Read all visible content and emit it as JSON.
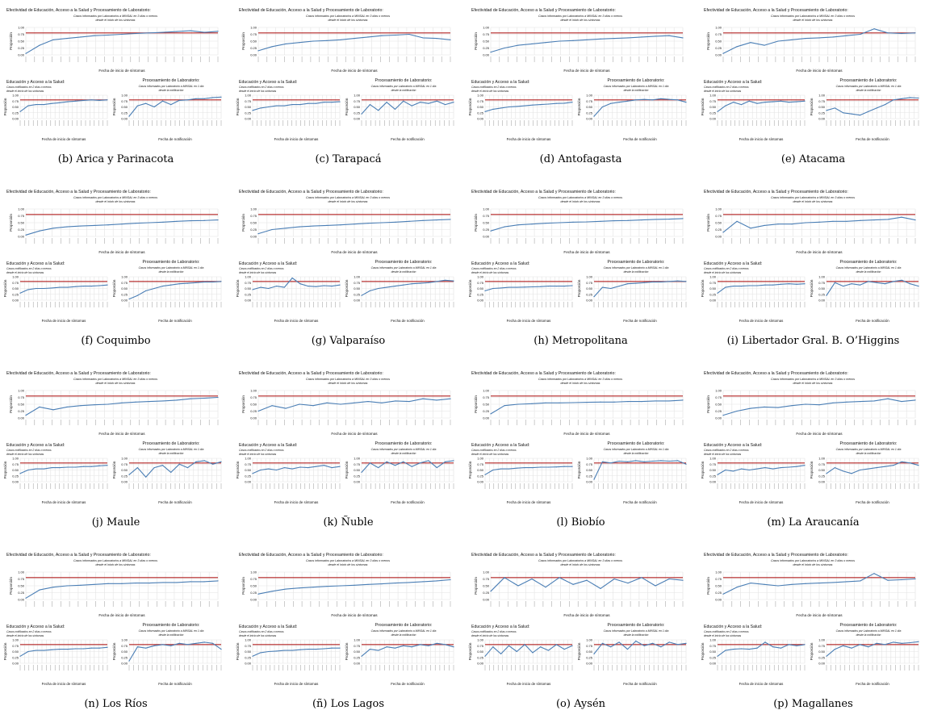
{
  "common": {
    "main_title": "Efectividad de Educación, Acceso a la Salud y Procesamiento de Laboratorio:",
    "main_subtitle_1": "Casos informados por Laboratorios a MINSAL en 3 días o menos",
    "main_subtitle_2": "desde el inicio de los síntomas",
    "main_xlabel": "Fecha de inicio de síntomas",
    "ylabel": "Proporción",
    "left_title": "Educación y Acceso a la Salud:",
    "left_subtitle_1": "Casos notificados en 2 días o menos",
    "left_subtitle_2": "desde el inicio de los síntomas",
    "left_xlabel": "Fecha de inicio de síntomas",
    "right_title": "Procesamiento de Laboratorio:",
    "right_subtitle_1": "Casos informados por Laboratorio a MINSAL en 1 día",
    "right_subtitle_2": "desde la notificación",
    "right_xlabel": "Fecha de notificación",
    "yticks": [
      "0.00",
      "0.25",
      "0.50",
      "0.75",
      "1.00"
    ],
    "threshold": 0.8,
    "colors": {
      "series": "#4a7eb5",
      "threshold": "#b22222",
      "grid": "#e3e3e3"
    }
  },
  "chart_data": [
    {
      "type": "line",
      "caption": "(b) Arica y Parinacota",
      "title": "Efectividad de Educación, Acceso a la Salud y Procesamiento de Laboratorio:",
      "ylabel": "Proporción",
      "ylim": [
        0,
        1
      ],
      "threshold": 0.8,
      "main": [
        0.05,
        0.35,
        0.55,
        0.6,
        0.65,
        0.7,
        0.72,
        0.75,
        0.78,
        0.8,
        0.82,
        0.85,
        0.88,
        0.82,
        0.86
      ],
      "sub_left": [
        0.3,
        0.55,
        0.6,
        0.6,
        0.65,
        0.68,
        0.72,
        0.75,
        0.78,
        0.8,
        0.78,
        0.8
      ],
      "sub_right": [
        0.1,
        0.55,
        0.65,
        0.5,
        0.75,
        0.6,
        0.78,
        0.8,
        0.85,
        0.85,
        0.9,
        0.92
      ]
    },
    {
      "type": "line",
      "caption": "(c) Tarapacá",
      "title": "Efectividad de Educación, Acceso a la Salud y Procesamiento de Laboratorio:",
      "ylabel": "Proporción",
      "ylim": [
        0,
        1
      ],
      "threshold": 0.8,
      "main": [
        0.15,
        0.3,
        0.4,
        0.45,
        0.5,
        0.52,
        0.55,
        0.6,
        0.65,
        0.7,
        0.72,
        0.75,
        0.62,
        0.6,
        0.55
      ],
      "sub_left": [
        0.35,
        0.45,
        0.5,
        0.55,
        0.55,
        0.6,
        0.6,
        0.65,
        0.65,
        0.7,
        0.7,
        0.72
      ],
      "sub_right": [
        0.2,
        0.6,
        0.35,
        0.7,
        0.4,
        0.75,
        0.55,
        0.7,
        0.65,
        0.75,
        0.6,
        0.7
      ]
    },
    {
      "type": "line",
      "caption": "(d) Antofagasta",
      "title": "Efectividad de Educación, Acceso a la Salud y Procesamiento de Laboratorio:",
      "ylabel": "Proporción",
      "ylim": [
        0,
        1
      ],
      "threshold": 0.8,
      "main": [
        0.1,
        0.25,
        0.35,
        0.4,
        0.45,
        0.5,
        0.52,
        0.55,
        0.58,
        0.6,
        0.62,
        0.65,
        0.68,
        0.7,
        0.62
      ],
      "sub_left": [
        0.3,
        0.4,
        0.45,
        0.5,
        0.52,
        0.55,
        0.58,
        0.6,
        0.62,
        0.65,
        0.66,
        0.7
      ],
      "sub_right": [
        0.1,
        0.5,
        0.65,
        0.7,
        0.75,
        0.8,
        0.82,
        0.8,
        0.85,
        0.82,
        0.8,
        0.7
      ]
    },
    {
      "type": "line",
      "caption": "(e) Atacama",
      "title": "Efectividad de Educación, Acceso a la Salud y Procesamiento de Laboratorio:",
      "ylabel": "Proporción",
      "ylim": [
        0,
        1
      ],
      "threshold": 0.8,
      "main": [
        0.05,
        0.3,
        0.45,
        0.35,
        0.5,
        0.55,
        0.6,
        0.62,
        0.65,
        0.7,
        0.75,
        0.95,
        0.8,
        0.78,
        0.8
      ],
      "sub_left": [
        0.3,
        0.55,
        0.7,
        0.6,
        0.75,
        0.65,
        0.7,
        0.72,
        0.75,
        0.7,
        0.72,
        0.75
      ],
      "sub_right": [
        0.35,
        0.45,
        0.25,
        0.2,
        0.15,
        0.3,
        0.45,
        0.6,
        0.8,
        0.85,
        0.9,
        0.88
      ]
    },
    {
      "type": "line",
      "caption": "(f) Coquimbo",
      "title": "Efectividad de Educación, Acceso a la Salud y Procesamiento de Laboratorio:",
      "ylabel": "Proporción",
      "ylim": [
        0,
        1
      ],
      "threshold": 0.8,
      "main": [
        0.05,
        0.2,
        0.3,
        0.35,
        0.38,
        0.4,
        0.42,
        0.45,
        0.48,
        0.5,
        0.52,
        0.55,
        0.57,
        0.58,
        0.6
      ],
      "sub_left": [
        0.3,
        0.45,
        0.5,
        0.5,
        0.52,
        0.55,
        0.55,
        0.58,
        0.6,
        0.6,
        0.62,
        0.65
      ],
      "sub_right": [
        0.05,
        0.2,
        0.4,
        0.5,
        0.6,
        0.65,
        0.7,
        0.72,
        0.75,
        0.78,
        0.78,
        0.8
      ]
    },
    {
      "type": "line",
      "caption": "(g) Valparaíso",
      "title": "Efectividad de Educación, Acceso a la Salud y Procesamiento de Laboratorio:",
      "ylabel": "Proporción",
      "ylim": [
        0,
        1
      ],
      "threshold": 0.8,
      "main": [
        0.1,
        0.25,
        0.3,
        0.35,
        0.38,
        0.4,
        0.42,
        0.45,
        0.48,
        0.5,
        0.52,
        0.55,
        0.58,
        0.6,
        0.62
      ],
      "sub_left": [
        0.45,
        0.55,
        0.5,
        0.6,
        0.55,
        0.95,
        0.7,
        0.6,
        0.58,
        0.62,
        0.6,
        0.65
      ],
      "sub_right": [
        0.2,
        0.4,
        0.5,
        0.55,
        0.6,
        0.65,
        0.7,
        0.72,
        0.75,
        0.8,
        0.85,
        0.82
      ]
    },
    {
      "type": "line",
      "caption": "(h) Metropolitana",
      "title": "Efectividad de Educación, Acceso a la Salud y Procesamiento de Laboratorio:",
      "ylabel": "Proporción",
      "ylim": [
        0,
        1
      ],
      "threshold": 0.8,
      "main": [
        0.2,
        0.35,
        0.42,
        0.45,
        0.48,
        0.5,
        0.52,
        0.53,
        0.55,
        0.57,
        0.58,
        0.6,
        0.62,
        0.63,
        0.65
      ],
      "sub_left": [
        0.4,
        0.5,
        0.52,
        0.55,
        0.55,
        0.56,
        0.57,
        0.58,
        0.6,
        0.6,
        0.6,
        0.62
      ],
      "sub_right": [
        0.15,
        0.55,
        0.5,
        0.6,
        0.7,
        0.72,
        0.75,
        0.78,
        0.78,
        0.8,
        0.82,
        0.8
      ]
    },
    {
      "type": "line",
      "caption": "(i) Libertador Gral. B. O’Higgins",
      "title": "Efectividad de Educación, Acceso a la Salud y Procesamiento de Laboratorio:",
      "ylabel": "Proporción",
      "ylim": [
        0,
        1
      ],
      "threshold": 0.8,
      "main": [
        0.15,
        0.55,
        0.3,
        0.4,
        0.45,
        0.45,
        0.5,
        0.52,
        0.55,
        0.55,
        0.58,
        0.6,
        0.62,
        0.7,
        0.6
      ],
      "sub_left": [
        0.3,
        0.55,
        0.6,
        0.6,
        0.62,
        0.62,
        0.65,
        0.65,
        0.68,
        0.7,
        0.68,
        0.7
      ],
      "sub_right": [
        0.2,
        0.75,
        0.6,
        0.7,
        0.65,
        0.8,
        0.75,
        0.7,
        0.8,
        0.85,
        0.7,
        0.6
      ]
    },
    {
      "type": "line",
      "caption": "(j) Maule",
      "title": "Efectividad de Educación, Acceso a la Salud y Procesamiento de Laboratorio:",
      "ylabel": "Proporción",
      "ylim": [
        0,
        1
      ],
      "threshold": 0.8,
      "main": [
        0.1,
        0.4,
        0.3,
        0.4,
        0.45,
        0.48,
        0.5,
        0.55,
        0.58,
        0.6,
        0.62,
        0.65,
        0.7,
        0.72,
        0.75
      ],
      "sub_left": [
        0.35,
        0.5,
        0.55,
        0.55,
        0.6,
        0.6,
        0.62,
        0.62,
        0.65,
        0.65,
        0.68,
        0.7
      ],
      "sub_right": [
        0.3,
        0.6,
        0.2,
        0.6,
        0.7,
        0.4,
        0.75,
        0.6,
        0.85,
        0.9,
        0.75,
        0.85
      ]
    },
    {
      "type": "line",
      "caption": "(k) Ñuble",
      "title": "Efectividad de Educación, Acceso a la Salud y Procesamiento de Laboratorio:",
      "ylabel": "Proporción",
      "ylim": [
        0,
        1
      ],
      "threshold": 0.8,
      "main": [
        0.25,
        0.45,
        0.35,
        0.5,
        0.45,
        0.55,
        0.5,
        0.55,
        0.6,
        0.55,
        0.62,
        0.6,
        0.7,
        0.65,
        0.7
      ],
      "sub_left": [
        0.35,
        0.5,
        0.55,
        0.5,
        0.6,
        0.55,
        0.62,
        0.6,
        0.65,
        0.7,
        0.6,
        0.65
      ],
      "sub_right": [
        0.4,
        0.8,
        0.6,
        0.85,
        0.7,
        0.85,
        0.65,
        0.8,
        0.9,
        0.6,
        0.85,
        0.9
      ]
    },
    {
      "type": "line",
      "caption": "(l) Biobío",
      "title": "Efectividad de Educación, Acceso a la Salud y Procesamiento de Laboratorio:",
      "ylabel": "Proporción",
      "ylim": [
        0,
        1
      ],
      "threshold": 0.8,
      "main": [
        0.15,
        0.45,
        0.5,
        0.52,
        0.55,
        0.55,
        0.56,
        0.57,
        0.58,
        0.58,
        0.6,
        0.6,
        0.62,
        0.62,
        0.65
      ],
      "sub_left": [
        0.3,
        0.5,
        0.55,
        0.55,
        0.58,
        0.6,
        0.6,
        0.62,
        0.62,
        0.63,
        0.65,
        0.65
      ],
      "sub_right": [
        0.1,
        0.85,
        0.8,
        0.88,
        0.85,
        0.9,
        0.85,
        0.88,
        0.9,
        0.88,
        0.9,
        0.75
      ]
    },
    {
      "type": "line",
      "caption": "(m) La Araucanía",
      "title": "Efectividad de Educación, Acceso a la Salud y Procesamiento de Laboratorio:",
      "ylabel": "Proporción",
      "ylim": [
        0,
        1
      ],
      "threshold": 0.8,
      "main": [
        0.1,
        0.25,
        0.35,
        0.4,
        0.38,
        0.45,
        0.5,
        0.48,
        0.55,
        0.58,
        0.6,
        0.62,
        0.7,
        0.6,
        0.65
      ],
      "sub_left": [
        0.3,
        0.5,
        0.45,
        0.55,
        0.5,
        0.55,
        0.6,
        0.55,
        0.6,
        0.62,
        0.65,
        0.7
      ],
      "sub_right": [
        0.35,
        0.6,
        0.45,
        0.35,
        0.5,
        0.55,
        0.6,
        0.65,
        0.7,
        0.85,
        0.8,
        0.7
      ]
    },
    {
      "type": "line",
      "caption": "(n) Los Ríos",
      "title": "Efectividad de Educación, Acceso a la Salud y Procesamiento de Laboratorio:",
      "ylabel": "Proporción",
      "ylim": [
        0,
        1
      ],
      "threshold": 0.8,
      "main": [
        0.05,
        0.35,
        0.45,
        0.5,
        0.52,
        0.55,
        0.58,
        0.58,
        0.6,
        0.6,
        0.62,
        0.62,
        0.65,
        0.65,
        0.68
      ],
      "sub_left": [
        0.3,
        0.5,
        0.55,
        0.55,
        0.58,
        0.6,
        0.6,
        0.62,
        0.62,
        0.65,
        0.65,
        0.68
      ],
      "sub_right": [
        0.1,
        0.7,
        0.65,
        0.75,
        0.8,
        0.75,
        0.85,
        0.8,
        0.85,
        0.9,
        0.85,
        0.6
      ]
    },
    {
      "type": "line",
      "caption": "(ñ) Los Lagos",
      "title": "Efectividad de Educación, Acceso a la Salud y Procesamiento de Laboratorio:",
      "ylabel": "Proporción",
      "ylim": [
        0,
        1
      ],
      "threshold": 0.8,
      "main": [
        0.2,
        0.3,
        0.38,
        0.42,
        0.45,
        0.48,
        0.5,
        0.52,
        0.55,
        0.57,
        0.6,
        0.62,
        0.65,
        0.68,
        0.72
      ],
      "sub_left": [
        0.3,
        0.45,
        0.5,
        0.52,
        0.55,
        0.55,
        0.58,
        0.6,
        0.6,
        0.62,
        0.65,
        0.65
      ],
      "sub_right": [
        0.3,
        0.6,
        0.55,
        0.7,
        0.65,
        0.75,
        0.7,
        0.8,
        0.75,
        0.85,
        0.8,
        0.7
      ]
    },
    {
      "type": "line",
      "caption": "(o) Aysén",
      "title": "Efectividad de Educación, Acceso a la Salud y Procesamiento de Laboratorio:",
      "ylabel": "Proporción",
      "ylim": [
        0,
        1
      ],
      "threshold": 0.8,
      "main": [
        0.3,
        0.8,
        0.5,
        0.75,
        0.45,
        0.8,
        0.55,
        0.7,
        0.4,
        0.75,
        0.6,
        0.8,
        0.5,
        0.75,
        0.7
      ],
      "sub_left": [
        0.3,
        0.7,
        0.4,
        0.75,
        0.5,
        0.8,
        0.45,
        0.7,
        0.55,
        0.8,
        0.6,
        0.75
      ],
      "sub_right": [
        0.4,
        0.85,
        0.7,
        0.9,
        0.6,
        0.95,
        0.75,
        0.85,
        0.7,
        0.9,
        0.8,
        0.85
      ]
    },
    {
      "type": "line",
      "caption": "(p) Magallanes",
      "title": "Efectividad de Educación, Acceso a la Salud y Procesamiento de Laboratorio:",
      "ylabel": "Proporción",
      "ylim": [
        0,
        1
      ],
      "threshold": 0.8,
      "main": [
        0.2,
        0.45,
        0.6,
        0.55,
        0.5,
        0.55,
        0.58,
        0.6,
        0.62,
        0.65,
        0.68,
        0.95,
        0.7,
        0.72,
        0.75
      ],
      "sub_left": [
        0.3,
        0.55,
        0.6,
        0.62,
        0.6,
        0.65,
        0.9,
        0.7,
        0.65,
        0.8,
        0.75,
        0.8
      ],
      "sub_right": [
        0.3,
        0.6,
        0.75,
        0.65,
        0.8,
        0.7,
        0.85,
        0.8,
        0.9,
        0.85,
        0.88,
        0.92
      ]
    }
  ]
}
